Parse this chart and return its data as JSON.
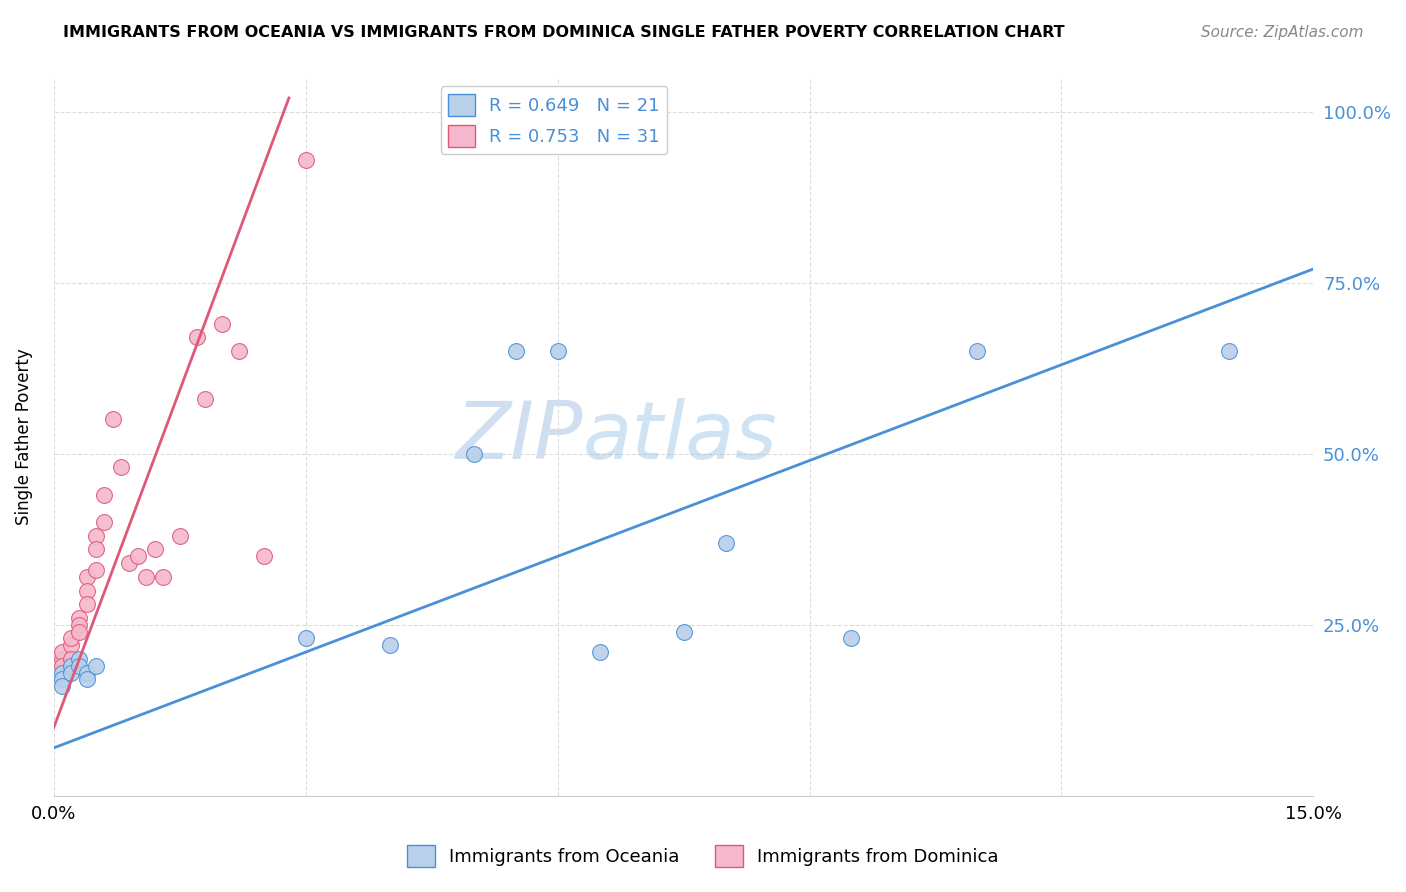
{
  "title": "IMMIGRANTS FROM OCEANIA VS IMMIGRANTS FROM DOMINICA SINGLE FATHER POVERTY CORRELATION CHART",
  "source": "Source: ZipAtlas.com",
  "ylabel": "Single Father Poverty",
  "y_ticks": [
    0.0,
    0.25,
    0.5,
    0.75,
    1.0
  ],
  "y_tick_labels": [
    "",
    "25.0%",
    "50.0%",
    "75.0%",
    "100.0%"
  ],
  "x_ticks": [
    0.0,
    0.03,
    0.06,
    0.09,
    0.12,
    0.15
  ],
  "x_tick_labels": [
    "0.0%",
    "",
    "",
    "",
    "",
    "15.0%"
  ],
  "blue_R": 0.649,
  "blue_N": 21,
  "pink_R": 0.753,
  "pink_N": 31,
  "blue_fill_color": "#b8d0ea",
  "pink_fill_color": "#f5b8cc",
  "blue_line_color": "#4a90d9",
  "pink_line_color": "#e05878",
  "watermark_color": "#d0dff0",
  "xlim": [
    0.0,
    0.15
  ],
  "ylim": [
    0.0,
    1.05
  ],
  "figsize": [
    14.06,
    8.92
  ],
  "dpi": 100,
  "blue_points_x": [
    0.001,
    0.001,
    0.001,
    0.002,
    0.002,
    0.003,
    0.003,
    0.004,
    0.004,
    0.005,
    0.03,
    0.04,
    0.05,
    0.055,
    0.06,
    0.065,
    0.075,
    0.08,
    0.095,
    0.11,
    0.14
  ],
  "blue_points_y": [
    0.18,
    0.17,
    0.16,
    0.19,
    0.18,
    0.2,
    0.19,
    0.18,
    0.17,
    0.19,
    0.23,
    0.22,
    0.5,
    0.65,
    0.65,
    0.21,
    0.24,
    0.37,
    0.23,
    0.65,
    0.65
  ],
  "pink_points_x": [
    0.001,
    0.001,
    0.001,
    0.002,
    0.002,
    0.002,
    0.003,
    0.003,
    0.003,
    0.004,
    0.004,
    0.004,
    0.005,
    0.005,
    0.005,
    0.006,
    0.006,
    0.007,
    0.008,
    0.009,
    0.01,
    0.011,
    0.012,
    0.013,
    0.015,
    0.017,
    0.018,
    0.02,
    0.022,
    0.025,
    0.03
  ],
  "pink_points_y": [
    0.2,
    0.21,
    0.19,
    0.22,
    0.2,
    0.23,
    0.26,
    0.25,
    0.24,
    0.32,
    0.3,
    0.28,
    0.38,
    0.36,
    0.33,
    0.44,
    0.4,
    0.55,
    0.48,
    0.34,
    0.35,
    0.32,
    0.36,
    0.32,
    0.38,
    0.67,
    0.58,
    0.69,
    0.65,
    0.35,
    0.93
  ],
  "blue_line_x": [
    0.0,
    0.15
  ],
  "blue_line_y": [
    0.07,
    0.77
  ],
  "pink_line_x": [
    0.0,
    0.028
  ],
  "pink_line_y": [
    0.1,
    1.02
  ]
}
